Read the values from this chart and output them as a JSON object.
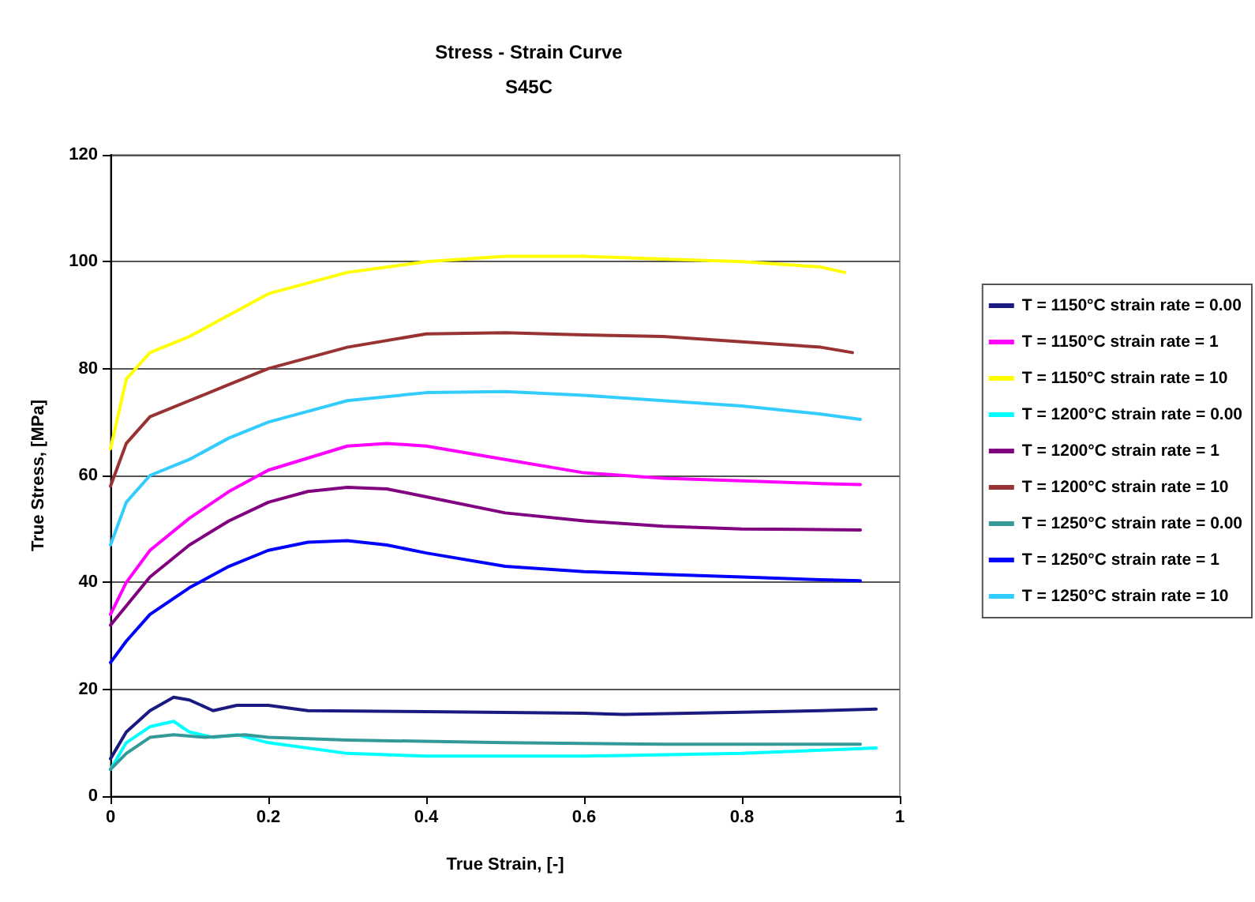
{
  "chart_data": {
    "type": "line",
    "title": "Stress - Strain Curve",
    "subtitle": "S45C",
    "xlabel": "True Strain, [-]",
    "ylabel": "True Stress, [MPa]",
    "xlim": [
      0,
      1
    ],
    "xticks": [
      0,
      0.2,
      0.4,
      0.6,
      0.8,
      1
    ],
    "ylim": [
      0,
      120
    ],
    "yticks": [
      0,
      20,
      40,
      60,
      80,
      100,
      120
    ],
    "grid": "y",
    "legend": "right",
    "marker": "none",
    "line_style": "solid",
    "series": [
      {
        "name": "T = 1150°C strain rate = 0.00",
        "color": "#1a1a80",
        "x": [
          0,
          0.02,
          0.05,
          0.08,
          0.1,
          0.13,
          0.16,
          0.2,
          0.25,
          0.4,
          0.6,
          0.65,
          0.8,
          0.9,
          0.97
        ],
        "values": [
          7,
          12,
          16,
          18.5,
          18,
          16,
          17,
          17,
          16,
          15.8,
          15.5,
          15.3,
          15.7,
          16,
          16.3
        ]
      },
      {
        "name": "T = 1150°C strain rate = 1",
        "color": "#ff00ff",
        "x": [
          0,
          0.02,
          0.05,
          0.1,
          0.15,
          0.2,
          0.3,
          0.35,
          0.4,
          0.5,
          0.6,
          0.7,
          0.8,
          0.9,
          0.95
        ],
        "values": [
          34,
          40,
          46,
          52,
          57,
          61,
          65.5,
          66,
          65.5,
          63,
          60.5,
          59.5,
          59,
          58.5,
          58.3
        ]
      },
      {
        "name": "T = 1150°C strain rate = 10",
        "color": "#ffff00",
        "x": [
          0,
          0.02,
          0.05,
          0.1,
          0.15,
          0.2,
          0.3,
          0.4,
          0.5,
          0.6,
          0.7,
          0.8,
          0.9,
          0.93
        ],
        "values": [
          65,
          78,
          83,
          86,
          90,
          94,
          98,
          100,
          101,
          101,
          100.5,
          100,
          99,
          98
        ]
      },
      {
        "name": "T = 1200°C strain rate = 0.00",
        "color": "#00ffff",
        "x": [
          0,
          0.02,
          0.05,
          0.08,
          0.1,
          0.13,
          0.16,
          0.2,
          0.3,
          0.4,
          0.6,
          0.8,
          0.97
        ],
        "values": [
          5,
          10,
          13,
          14,
          12,
          11,
          11.5,
          10,
          8,
          7.5,
          7.5,
          8,
          9
        ]
      },
      {
        "name": "T = 1200°C strain rate = 1",
        "color": "#800080",
        "x": [
          0,
          0.05,
          0.1,
          0.15,
          0.2,
          0.25,
          0.3,
          0.35,
          0.4,
          0.5,
          0.6,
          0.7,
          0.8,
          0.95
        ],
        "values": [
          32,
          41,
          47,
          51.5,
          55,
          57,
          57.8,
          57.5,
          56,
          53,
          51.5,
          50.5,
          50,
          49.8
        ]
      },
      {
        "name": "T = 1200°C strain rate = 10",
        "color": "#993333",
        "x": [
          0,
          0.02,
          0.05,
          0.1,
          0.15,
          0.2,
          0.3,
          0.4,
          0.5,
          0.6,
          0.7,
          0.8,
          0.9,
          0.94
        ],
        "values": [
          58,
          66,
          71,
          74,
          77,
          80,
          84,
          86.5,
          86.7,
          86.3,
          86,
          85,
          84,
          83
        ]
      },
      {
        "name": "T = 1250°C strain rate = 0.00",
        "color": "#339999",
        "x": [
          0,
          0.02,
          0.05,
          0.08,
          0.12,
          0.17,
          0.2,
          0.3,
          0.5,
          0.7,
          0.95
        ],
        "values": [
          5,
          8,
          11,
          11.5,
          11,
          11.5,
          11,
          10.5,
          10,
          9.7,
          9.7
        ]
      },
      {
        "name": "T = 1250°C strain rate = 1",
        "color": "#0000ff",
        "x": [
          0,
          0.02,
          0.05,
          0.1,
          0.15,
          0.2,
          0.25,
          0.3,
          0.35,
          0.4,
          0.5,
          0.6,
          0.7,
          0.8,
          0.9,
          0.95
        ],
        "values": [
          25,
          29,
          34,
          39,
          43,
          46,
          47.5,
          47.8,
          47,
          45.5,
          43,
          42,
          41.5,
          41,
          40.5,
          40.3
        ]
      },
      {
        "name": "T = 1250°C strain rate = 10",
        "color": "#33ccff",
        "x": [
          0,
          0.02,
          0.05,
          0.1,
          0.15,
          0.2,
          0.3,
          0.4,
          0.5,
          0.6,
          0.7,
          0.8,
          0.9,
          0.95
        ],
        "values": [
          47,
          55,
          60,
          63,
          67,
          70,
          74,
          75.5,
          75.7,
          75,
          74,
          73,
          71.5,
          70.5
        ]
      }
    ]
  }
}
